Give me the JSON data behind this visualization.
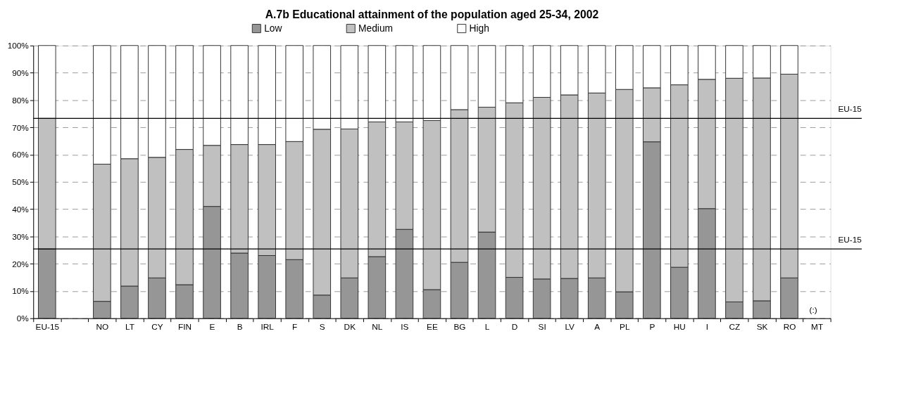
{
  "chart_data": {
    "type": "bar",
    "stacked": true,
    "title": "A.7b  Educational attainment of the population aged 25-34, 2002",
    "categories": [
      "EU-15",
      null,
      "NO",
      "LT",
      "CY",
      "FIN",
      "E",
      "B",
      "IRL",
      "F",
      "S",
      "DK",
      "NL",
      "IS",
      "EE",
      "BG",
      "L",
      "D",
      "SI",
      "LV",
      "A",
      "PL",
      "P",
      "HU",
      "I",
      "CZ",
      "SK",
      "RO",
      "MT"
    ],
    "series": [
      {
        "name": "Low",
        "color": "#969696",
        "values": [
          25.4,
          null,
          6.2,
          11.8,
          14.8,
          12.3,
          41.0,
          23.9,
          23.0,
          21.5,
          8.5,
          14.8,
          22.6,
          32.6,
          10.5,
          20.5,
          31.6,
          15.0,
          14.4,
          14.6,
          14.8,
          9.7,
          64.7,
          18.7,
          40.2,
          6.0,
          6.4,
          14.8,
          null
        ]
      },
      {
        "name": "Medium",
        "color": "#c0c0c0",
        "values": [
          47.9,
          null,
          50.3,
          46.7,
          44.2,
          49.6,
          22.4,
          39.8,
          40.7,
          43.3,
          60.8,
          54.6,
          49.4,
          39.4,
          62.0,
          56.0,
          45.8,
          64.0,
          66.6,
          67.3,
          67.8,
          74.2,
          19.8,
          66.9,
          47.4,
          82.0,
          81.7,
          74.7,
          null
        ]
      },
      {
        "name": "High",
        "color": "#ffffff",
        "values": [
          26.7,
          null,
          43.5,
          41.5,
          41.0,
          38.1,
          36.6,
          36.3,
          36.3,
          35.2,
          30.7,
          30.6,
          28.0,
          28.0,
          27.5,
          23.5,
          22.6,
          21.0,
          19.0,
          18.1,
          17.4,
          16.1,
          15.5,
          14.4,
          12.4,
          12.0,
          11.9,
          10.5,
          null
        ]
      }
    ],
    "ylim": [
      0,
      100
    ],
    "yticks": [
      {
        "value": 0,
        "label": "0%"
      },
      {
        "value": 10,
        "label": "10%"
      },
      {
        "value": 20,
        "label": "20%"
      },
      {
        "value": 30,
        "label": "30%"
      },
      {
        "value": 40,
        "label": "40%"
      },
      {
        "value": 50,
        "label": "50%"
      },
      {
        "value": 60,
        "label": "60%"
      },
      {
        "value": 70,
        "label": "70%"
      },
      {
        "value": 80,
        "label": "80%"
      },
      {
        "value": 90,
        "label": "90%"
      },
      {
        "value": 100,
        "label": "100%"
      }
    ],
    "ref_lines": [
      {
        "axis": "y",
        "value": 73.3,
        "label": "EU-15",
        "color": "#000000"
      },
      {
        "axis": "y",
        "value": 25.4,
        "label": "EU-15",
        "color": "#000000"
      }
    ],
    "annotations": [
      "(:)"
    ],
    "grid": "y",
    "legend": "top"
  }
}
